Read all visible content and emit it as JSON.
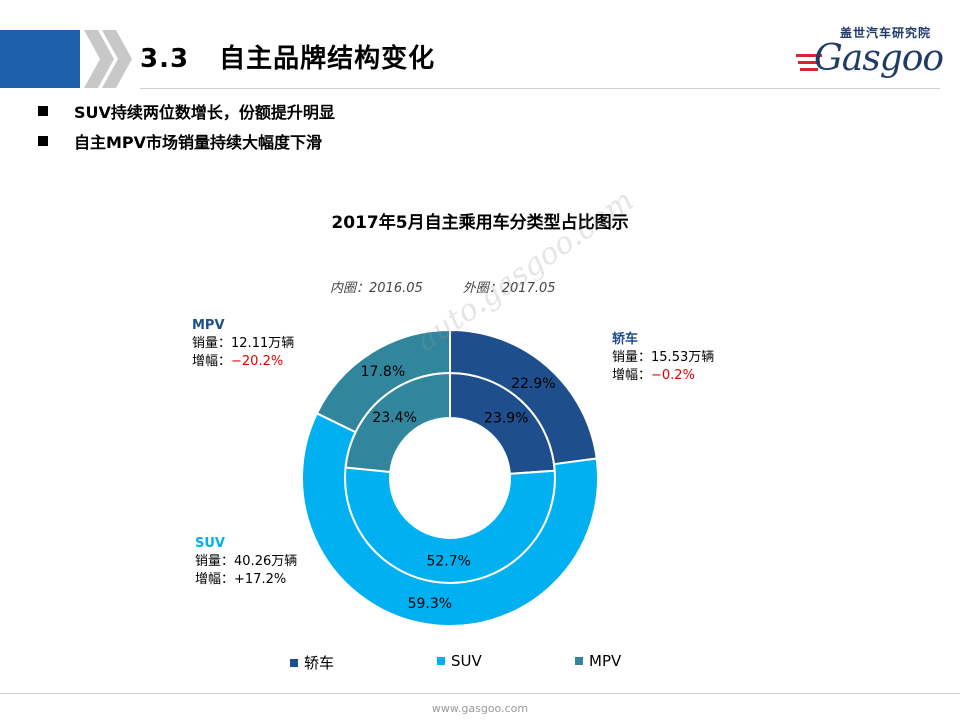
{
  "header": {
    "section_number": "3.3",
    "title": "自主品牌结构变化"
  },
  "logo": {
    "cn_text": "盖世汽车研究院",
    "en_text": "Gasgoo"
  },
  "bullets": [
    "SUV持续两位数增长，份额提升明显",
    "自主MPV市场销量持续大幅度下滑"
  ],
  "chart_data": {
    "type": "pie",
    "title": "2017年5月自主乘用车分类型占比图示",
    "ring_note_inner": "内圈：2016.05",
    "ring_note_outer": "外圈：2017.05",
    "categories": [
      "轿车",
      "SUV",
      "MPV"
    ],
    "colors": [
      "#1f4e8c",
      "#00b0f0",
      "#31859c"
    ],
    "series": [
      {
        "name": "内圈：2016.05",
        "values": [
          23.9,
          52.7,
          23.4
        ],
        "labels": [
          "23.9%",
          "52.7%",
          "23.4%"
        ]
      },
      {
        "name": "外圈：2017.05",
        "values": [
          22.9,
          59.3,
          17.8
        ],
        "labels": [
          "22.9%",
          "59.3%",
          "17.8%"
        ]
      }
    ],
    "legend_position": "bottom"
  },
  "callouts": {
    "sedan": {
      "name": "轿车",
      "sales_label": "销量：",
      "sales_value": "15.53万辆",
      "growth_label": "增幅：",
      "growth_value": "−0.2%"
    },
    "suv": {
      "name": "SUV",
      "sales_label": "销量：",
      "sales_value": "40.26万辆",
      "growth_label": "增幅：",
      "growth_value": "+17.2%"
    },
    "mpv": {
      "name": "MPV",
      "sales_label": "销量：",
      "sales_value": "12.11万辆",
      "growth_label": "增幅：",
      "growth_value": "−20.2%"
    }
  },
  "watermark": {
    "text": "auto.gasgoo.com"
  },
  "footer": {
    "url": "www.gasgoo.com"
  }
}
